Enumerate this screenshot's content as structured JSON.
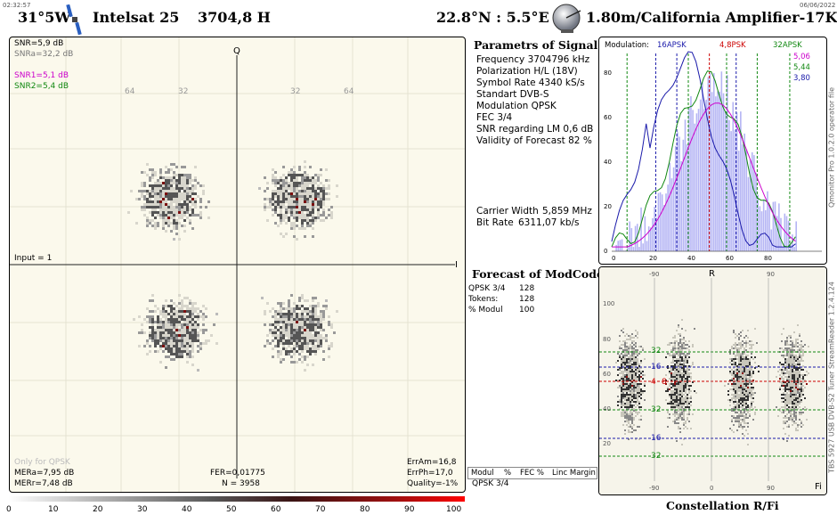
{
  "top_time": "02:32:57",
  "top_date": "06/06/2022",
  "header": {
    "longitude": "31°5W",
    "satellite": "Intelsat 25",
    "frequency": "3704,8  H",
    "position": "22.8°N : 5.5°E",
    "antenna": "1.80m/California Amplifier-17K"
  },
  "colors": {
    "accent_red": "#cc0000",
    "green": "#118811",
    "blue": "#1a1aaa",
    "magenta": "#cc00cc"
  },
  "constellation": {
    "snr": "SNR=5,9 dB",
    "snra": "SNRa=32,2 dB",
    "snr1": "SNR1=5,1 dB",
    "snr2": "SNR2=5,4 dB",
    "q_label": "Q",
    "i_label": "I",
    "input": "Input = 1",
    "only_qpsk": "Only for QPSK",
    "mera": "MERa=7,95 dB",
    "merr": "MERr=7,48 dB",
    "fer": "FER=0,01775",
    "n": "N = 3958",
    "erram": "ErrAm=16,8",
    "errph": "ErrPh=17,0",
    "quality": "Quality=-1%",
    "grid_labels": [
      "64",
      "32",
      "32",
      "64"
    ]
  },
  "params": {
    "title": "Parametrs of Signal :",
    "rows": [
      {
        "label": "Frequency",
        "value": "3704796 kHz"
      },
      {
        "label": "Polarization",
        "value": "H/L (18V)"
      },
      {
        "label": "Symbol Rate",
        "value": "4340 kS/s"
      },
      {
        "label": "Standart",
        "value": "DVB-S"
      },
      {
        "label": "Modulation",
        "value": "QPSK"
      },
      {
        "label": "FEC",
        "value": "3/4"
      },
      {
        "label": "SNR regarding LM",
        "value": "0,6 dB"
      },
      {
        "label": "Validity of Forecast",
        "value": "82 %"
      }
    ],
    "carrier_width_label": "Carrier Width",
    "carrier_width": "5,859 MHz",
    "bit_rate_label": "Bit Rate",
    "bit_rate": "6311,07 kb/s"
  },
  "forecast": {
    "title": "Forecast of ModCode",
    "rows": [
      {
        "label": "QPSK 3/4",
        "value": "128"
      },
      {
        "label": "Tokens:",
        "value": "128"
      },
      {
        "label": "% Modul",
        "value": "100"
      }
    ],
    "table_headers": [
      "Modul",
      "%",
      "FEC %",
      "Linc Margin"
    ],
    "table_row": "QPSK 3/4"
  },
  "histogram": {
    "modulation_label": "Modulation:",
    "markers": [
      {
        "label": "16APSK",
        "color": "#1a1aaa"
      },
      {
        "label": "4,8PSK",
        "color": "#cc0000"
      },
      {
        "label": "32APSK",
        "color": "#118811"
      }
    ],
    "values": [
      {
        "text": "5,06",
        "color": "#cc00cc"
      },
      {
        "text": "5,44",
        "color": "#118811"
      },
      {
        "text": "3,80",
        "color": "#1a1aaa"
      }
    ],
    "y_ticks": [
      "80",
      "60",
      "40",
      "20",
      "0"
    ],
    "x_ticks": [
      "0",
      "20",
      "40",
      "60",
      "80"
    ],
    "side_text": "Qmonitor Pro 1.0.2.0  operator file"
  },
  "rfi": {
    "r_label": "R",
    "fi_label": "Fi",
    "x_top": [
      "-90",
      "90"
    ],
    "x_bottom": [
      "-90",
      "0",
      "90"
    ],
    "y_ticks": [
      "100",
      "80",
      "60",
      "40",
      "20"
    ],
    "ring_labels": [
      "32",
      "16",
      "4",
      "8",
      "32",
      "16",
      "32"
    ],
    "side_text": "TBS 5927 USB DVB-S2 Tuner    StreamReader 1.2.4.124",
    "title": "Constellation  R/Fi"
  },
  "colorbar": {
    "ticks": [
      "0",
      "10",
      "20",
      "30",
      "40",
      "50",
      "60",
      "70",
      "80",
      "90",
      "100"
    ]
  }
}
